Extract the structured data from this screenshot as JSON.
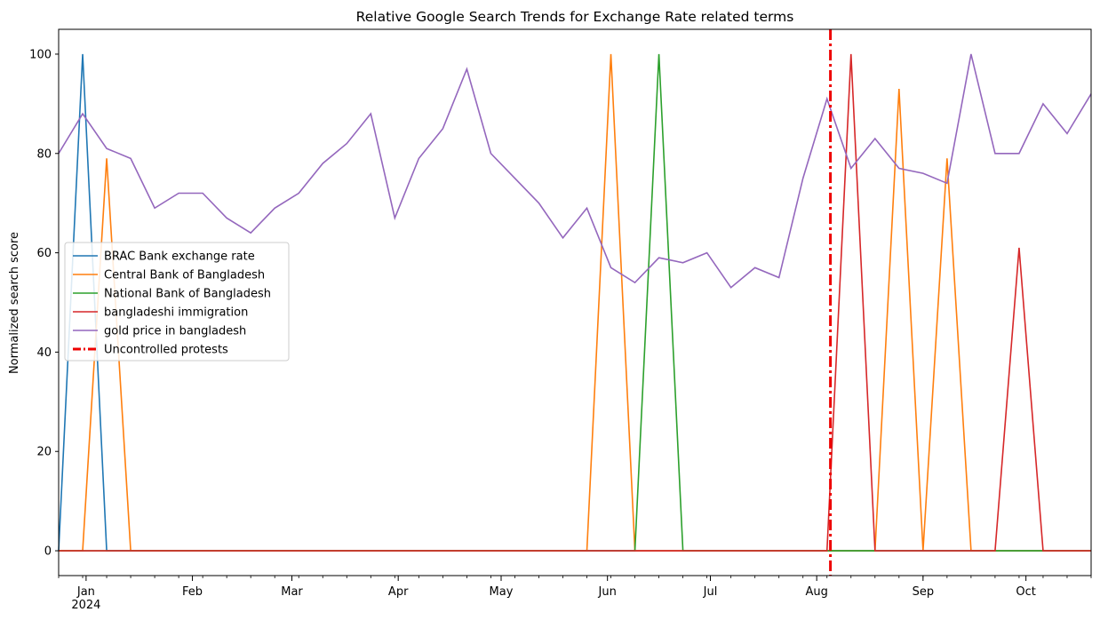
{
  "chart_data": {
    "type": "line",
    "title": "Relative Google Search Trends for Exchange Rate related terms",
    "xlabel": "",
    "ylabel": "Normalized search score",
    "ylim": [
      -5,
      105
    ],
    "yticks": [
      0,
      20,
      40,
      60,
      80,
      100
    ],
    "xlim": [
      "2023-12-24",
      "2024-10-20"
    ],
    "xticks": [
      {
        "date": "2024-01-01",
        "label": "Jan",
        "sublabel": "2024"
      },
      {
        "date": "2024-02-01",
        "label": "Feb"
      },
      {
        "date": "2024-03-01",
        "label": "Mar"
      },
      {
        "date": "2024-04-01",
        "label": "Apr"
      },
      {
        "date": "2024-05-01",
        "label": "May"
      },
      {
        "date": "2024-06-01",
        "label": "Jun"
      },
      {
        "date": "2024-07-01",
        "label": "Jul"
      },
      {
        "date": "2024-08-01",
        "label": "Aug"
      },
      {
        "date": "2024-09-01",
        "label": "Sep"
      },
      {
        "date": "2024-10-01",
        "label": "Oct"
      }
    ],
    "x": [
      "2023-12-24",
      "2023-12-31",
      "2024-01-07",
      "2024-01-14",
      "2024-01-21",
      "2024-01-28",
      "2024-02-04",
      "2024-02-11",
      "2024-02-18",
      "2024-02-25",
      "2024-03-03",
      "2024-03-10",
      "2024-03-17",
      "2024-03-24",
      "2024-03-31",
      "2024-04-07",
      "2024-04-14",
      "2024-04-21",
      "2024-04-28",
      "2024-05-05",
      "2024-05-12",
      "2024-05-19",
      "2024-05-26",
      "2024-06-02",
      "2024-06-09",
      "2024-06-16",
      "2024-06-23",
      "2024-06-30",
      "2024-07-07",
      "2024-07-14",
      "2024-07-21",
      "2024-07-28",
      "2024-08-04",
      "2024-08-11",
      "2024-08-18",
      "2024-08-25",
      "2024-09-01",
      "2024-09-08",
      "2024-09-15",
      "2024-09-22",
      "2024-09-29",
      "2024-10-06",
      "2024-10-13",
      "2024-10-20"
    ],
    "series": [
      {
        "name": "BRAC Bank exchange rate",
        "color": "#1f77b4",
        "values": [
          0,
          100,
          0,
          0,
          0,
          0,
          0,
          0,
          0,
          0,
          0,
          0,
          0,
          0,
          0,
          0,
          0,
          0,
          0,
          0,
          0,
          0,
          0,
          0,
          0,
          0,
          0,
          0,
          0,
          0,
          0,
          0,
          0,
          0,
          0,
          0,
          0,
          0,
          0,
          0,
          0,
          0,
          0,
          0
        ]
      },
      {
        "name": "Central Bank of Bangladesh",
        "color": "#ff7f0e",
        "values": [
          0,
          0,
          79,
          0,
          0,
          0,
          0,
          0,
          0,
          0,
          0,
          0,
          0,
          0,
          0,
          0,
          0,
          0,
          0,
          0,
          0,
          0,
          0,
          100,
          0,
          0,
          0,
          0,
          0,
          0,
          0,
          0,
          0,
          0,
          0,
          93,
          0,
          79,
          0,
          0,
          0,
          0,
          0,
          0
        ]
      },
      {
        "name": "National Bank of Bangladesh",
        "color": "#2ca02c",
        "values": [
          0,
          0,
          0,
          0,
          0,
          0,
          0,
          0,
          0,
          0,
          0,
          0,
          0,
          0,
          0,
          0,
          0,
          0,
          0,
          0,
          0,
          0,
          0,
          0,
          0,
          100,
          0,
          0,
          0,
          0,
          0,
          0,
          0,
          0,
          0,
          0,
          0,
          0,
          0,
          0,
          0,
          0,
          0,
          0
        ]
      },
      {
        "name": "bangladeshi immigration",
        "color": "#d62728",
        "values": [
          0,
          0,
          0,
          0,
          0,
          0,
          0,
          0,
          0,
          0,
          0,
          0,
          0,
          0,
          0,
          0,
          0,
          0,
          0,
          0,
          0,
          0,
          0,
          0,
          0,
          0,
          0,
          0,
          0,
          0,
          0,
          0,
          0,
          100,
          0,
          0,
          0,
          0,
          0,
          0,
          61,
          0,
          0,
          0
        ]
      },
      {
        "name": "gold price in bangladesh",
        "color": "#9467bd",
        "values": [
          80,
          88,
          81,
          79,
          69,
          72,
          72,
          67,
          64,
          69,
          72,
          78,
          82,
          88,
          67,
          79,
          85,
          97,
          80,
          75,
          70,
          63,
          69,
          57,
          54,
          59,
          58,
          60,
          53,
          57,
          55,
          75,
          91,
          77,
          83,
          77,
          76,
          74,
          100,
          80,
          80,
          90,
          84,
          92
        ]
      }
    ],
    "annotations": [
      {
        "type": "vline",
        "x": "2024-08-05",
        "label": "Uncontrolled protests",
        "color": "#ee0000",
        "style": "dash-dot"
      }
    ],
    "legend": "center-left",
    "grid": false
  }
}
